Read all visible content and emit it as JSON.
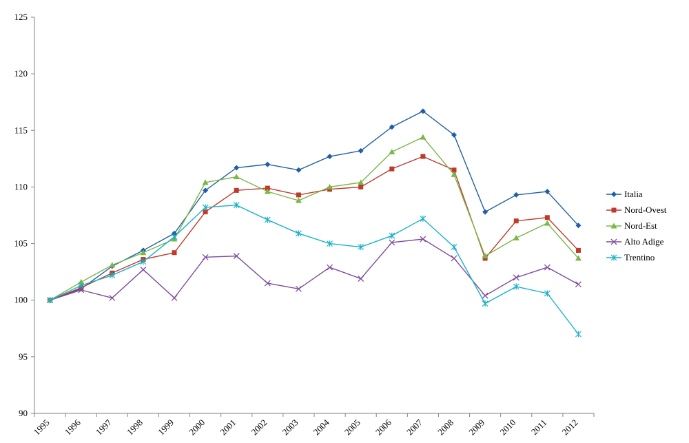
{
  "chart_data": {
    "type": "line",
    "title": "",
    "xlabel": "",
    "ylabel": "",
    "x": [
      "1995",
      "1996",
      "1997",
      "1998",
      "1999",
      "2000",
      "2001",
      "2002",
      "2003",
      "2004",
      "2005",
      "2006",
      "2007",
      "2008",
      "2009",
      "2010",
      "2011",
      "2012"
    ],
    "ylim": [
      90,
      125
    ],
    "yticks": [
      90,
      95,
      100,
      105,
      110,
      115,
      120,
      125
    ],
    "grid": false,
    "legend_position": "right",
    "series": [
      {
        "name": "Italia",
        "color": "#1f5fa6",
        "marker": "diamond",
        "values": [
          100,
          101.0,
          103.0,
          104.4,
          105.9,
          109.7,
          111.7,
          112.0,
          111.5,
          112.7,
          113.2,
          115.3,
          116.7,
          114.6,
          107.8,
          109.3,
          109.6,
          106.6
        ]
      },
      {
        "name": "Nord-Ovest",
        "color": "#c0392b",
        "marker": "square",
        "values": [
          100,
          101.1,
          102.4,
          103.6,
          104.2,
          107.8,
          109.7,
          109.9,
          109.3,
          109.8,
          110.0,
          111.6,
          112.7,
          111.5,
          103.7,
          107.0,
          107.3,
          104.4
        ]
      },
      {
        "name": "Nord-Est",
        "color": "#7ab648",
        "marker": "triangle",
        "values": [
          100,
          101.6,
          103.1,
          104.2,
          105.4,
          110.4,
          110.9,
          109.6,
          108.8,
          110.0,
          110.4,
          113.1,
          114.4,
          111.1,
          103.9,
          105.5,
          106.8,
          103.7
        ]
      },
      {
        "name": "Alto Adige",
        "color": "#7d4c9e",
        "marker": "x",
        "values": [
          100,
          100.9,
          100.2,
          102.7,
          100.2,
          103.8,
          103.9,
          101.5,
          101.0,
          102.9,
          101.9,
          105.1,
          105.4,
          103.7,
          100.4,
          102.0,
          102.9,
          101.4
        ]
      },
      {
        "name": "Trentino",
        "color": "#1ab1c9",
        "marker": "star",
        "values": [
          100,
          101.3,
          102.2,
          103.4,
          105.6,
          108.2,
          108.4,
          107.1,
          105.9,
          105.0,
          104.7,
          105.7,
          107.2,
          104.7,
          99.7,
          101.2,
          100.6,
          97.0
        ]
      }
    ]
  }
}
